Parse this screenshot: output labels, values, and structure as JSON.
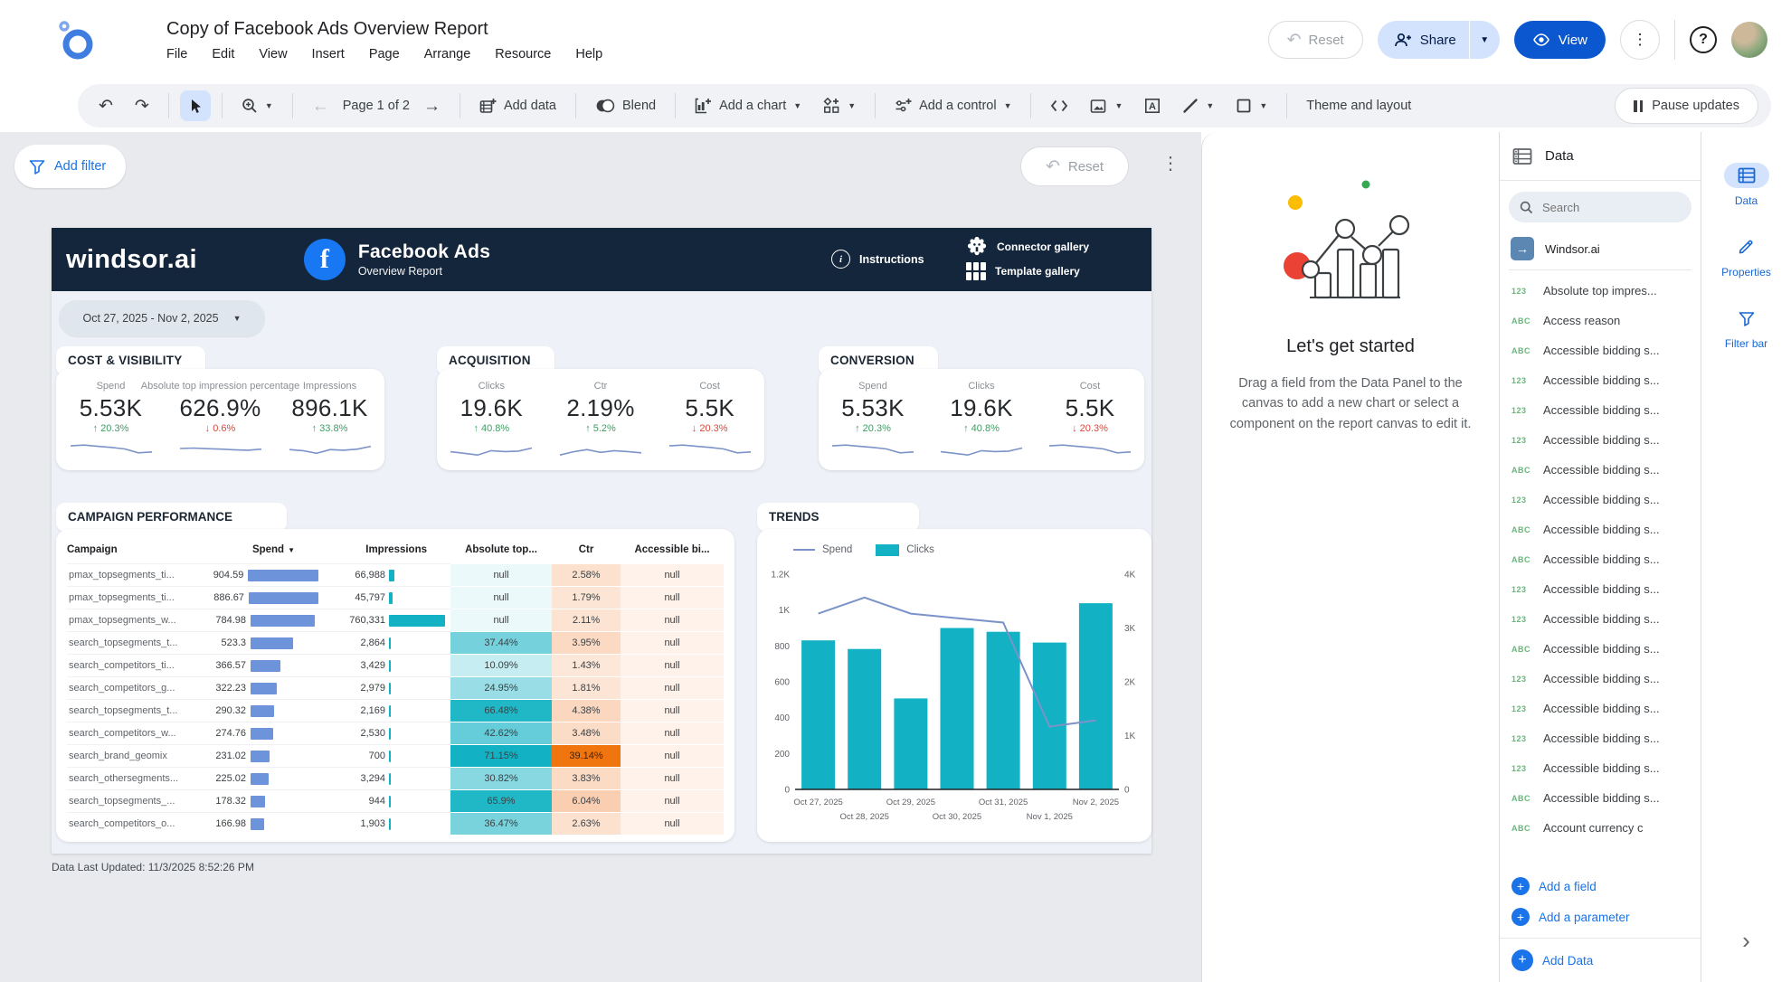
{
  "colors": {
    "navy": "#14263c",
    "fb_blue": "#1877f2",
    "teal": "#12b2c4",
    "bar_blue": "#6d94da",
    "line_blue": "#7b93c8",
    "green": "#3d9e63",
    "red": "#d9493c",
    "link": "#1a73e8",
    "view_blue": "#0b57d0"
  },
  "header": {
    "title": "Copy of Facebook Ads Overview Report",
    "menus": [
      "File",
      "Edit",
      "View",
      "Insert",
      "Page",
      "Arrange",
      "Resource",
      "Help"
    ],
    "reset": "Reset",
    "share": "Share",
    "view": "View"
  },
  "toolbar": {
    "page": "Page 1 of 2",
    "add_data": "Add data",
    "blend": "Blend",
    "add_chart": "Add a chart",
    "add_control": "Add a control",
    "theme": "Theme and layout",
    "pause": "Pause updates"
  },
  "canvas": {
    "add_filter": "Add filter",
    "reset": "Reset",
    "last_updated": "Data Last Updated: 11/3/2025 8:52:26 PM"
  },
  "banner": {
    "brand": "windsor.ai",
    "fb_letter": "f",
    "title": "Facebook Ads",
    "subtitle": "Overview Report",
    "instructions": "Instructions",
    "connector": "Connector gallery",
    "template": "Template gallery"
  },
  "date_range": "Oct 27, 2025 - Nov 2, 2025",
  "groups": [
    {
      "title": "COST & VISIBILITY",
      "metrics": [
        {
          "label": "Spend",
          "value": "5.53K",
          "delta": "20.3%",
          "tone": "good",
          "spark": [
            62,
            66,
            60,
            55,
            48,
            30,
            34
          ]
        },
        {
          "label": "Absolute top impression percentage",
          "value": "626.9%",
          "delta": "0.6%",
          "tone": "bad",
          "spark": [
            50,
            52,
            49,
            47,
            44,
            42,
            47
          ]
        },
        {
          "label": "Impressions",
          "value": "896.1K",
          "delta": "33.8%",
          "tone": "good",
          "spark": [
            45,
            40,
            28,
            45,
            42,
            47,
            60
          ]
        }
      ]
    },
    {
      "title": "ACQUISITION",
      "metrics": [
        {
          "label": "Clicks",
          "value": "19.6K",
          "delta": "40.8%",
          "tone": "good",
          "spark": [
            35,
            28,
            20,
            40,
            36,
            38,
            52
          ]
        },
        {
          "label": "Ctr",
          "value": "2.19%",
          "delta": "5.2%",
          "tone": "good",
          "spark": [
            20,
            35,
            45,
            32,
            40,
            36,
            30
          ]
        },
        {
          "label": "Cost",
          "value": "5.5K",
          "delta": "20.3%",
          "tone": "bad",
          "spark": [
            62,
            66,
            60,
            55,
            48,
            30,
            34
          ]
        }
      ]
    },
    {
      "title": "CONVERSION",
      "metrics": [
        {
          "label": "Spend",
          "value": "5.53K",
          "delta": "20.3%",
          "tone": "good",
          "spark": [
            62,
            66,
            60,
            55,
            48,
            30,
            34
          ]
        },
        {
          "label": "Clicks",
          "value": "19.6K",
          "delta": "40.8%",
          "tone": "good",
          "spark": [
            35,
            28,
            20,
            40,
            36,
            38,
            52
          ]
        },
        {
          "label": "Cost",
          "value": "5.5K",
          "delta": "20.3%",
          "tone": "bad",
          "spark": [
            62,
            66,
            60,
            55,
            48,
            30,
            34
          ]
        }
      ]
    }
  ],
  "table": {
    "title": "CAMPAIGN PERFORMANCE",
    "columns": [
      "Campaign",
      "Spend",
      "Impressions",
      "Absolute top...",
      "Ctr",
      "Accessible bi..."
    ],
    "rows": [
      {
        "campaign": "pmax_topsegments_ti...",
        "spend": "904.59",
        "spend_val": 904.59,
        "impressions": "66,988",
        "impr_val": 66988,
        "abs_top": "null",
        "abs_val": null,
        "ctr": "2.58%",
        "ctr_val": 2.58,
        "accessible": "null"
      },
      {
        "campaign": "pmax_topsegments_ti...",
        "spend": "886.67",
        "spend_val": 886.67,
        "impressions": "45,797",
        "impr_val": 45797,
        "abs_top": "null",
        "abs_val": null,
        "ctr": "1.79%",
        "ctr_val": 1.79,
        "accessible": "null"
      },
      {
        "campaign": "pmax_topsegments_w...",
        "spend": "784.98",
        "spend_val": 784.98,
        "impressions": "760,331",
        "impr_val": 760331,
        "abs_top": "null",
        "abs_val": null,
        "ctr": "2.11%",
        "ctr_val": 2.11,
        "accessible": "null"
      },
      {
        "campaign": "search_topsegments_t...",
        "spend": "523.3",
        "spend_val": 523.3,
        "impressions": "2,864",
        "impr_val": 2864,
        "abs_top": "37.44%",
        "abs_val": 37.44,
        "ctr": "3.95%",
        "ctr_val": 3.95,
        "accessible": "null"
      },
      {
        "campaign": "search_competitors_ti...",
        "spend": "366.57",
        "spend_val": 366.57,
        "impressions": "3,429",
        "impr_val": 3429,
        "abs_top": "10.09%",
        "abs_val": 10.09,
        "ctr": "1.43%",
        "ctr_val": 1.43,
        "accessible": "null"
      },
      {
        "campaign": "search_competitors_g...",
        "spend": "322.23",
        "spend_val": 322.23,
        "impressions": "2,979",
        "impr_val": 2979,
        "abs_top": "24.95%",
        "abs_val": 24.95,
        "ctr": "1.81%",
        "ctr_val": 1.81,
        "accessible": "null"
      },
      {
        "campaign": "search_topsegments_t...",
        "spend": "290.32",
        "spend_val": 290.32,
        "impressions": "2,169",
        "impr_val": 2169,
        "abs_top": "66.48%",
        "abs_val": 66.48,
        "ctr": "4.38%",
        "ctr_val": 4.38,
        "accessible": "null"
      },
      {
        "campaign": "search_competitors_w...",
        "spend": "274.76",
        "spend_val": 274.76,
        "impressions": "2,530",
        "impr_val": 2530,
        "abs_top": "42.62%",
        "abs_val": 42.62,
        "ctr": "3.48%",
        "ctr_val": 3.48,
        "accessible": "null"
      },
      {
        "campaign": "search_brand_geomix",
        "spend": "231.02",
        "spend_val": 231.02,
        "impressions": "700",
        "impr_val": 700,
        "abs_top": "71.15%",
        "abs_val": 71.15,
        "ctr": "39.14%",
        "ctr_val": 39.14,
        "accessible": "null"
      },
      {
        "campaign": "search_othersegments...",
        "spend": "225.02",
        "spend_val": 225.02,
        "impressions": "3,294",
        "impr_val": 3294,
        "abs_top": "30.82%",
        "abs_val": 30.82,
        "ctr": "3.83%",
        "ctr_val": 3.83,
        "accessible": "null"
      },
      {
        "campaign": "search_topsegments_...",
        "spend": "178.32",
        "spend_val": 178.32,
        "impressions": "944",
        "impr_val": 944,
        "abs_top": "65.9%",
        "abs_val": 65.9,
        "ctr": "6.04%",
        "ctr_val": 6.04,
        "accessible": "null"
      },
      {
        "campaign": "search_competitors_o...",
        "spend": "166.98",
        "spend_val": 166.98,
        "impressions": "1,903",
        "impr_val": 1903,
        "abs_top": "36.47%",
        "abs_val": 36.47,
        "ctr": "2.63%",
        "ctr_val": 2.63,
        "accessible": "null"
      }
    ]
  },
  "chart_data": {
    "type": "bar",
    "title": "TRENDS",
    "categories": [
      "Oct 27, 2025",
      "Oct 28, 2025",
      "Oct 29, 2025",
      "Oct 30, 2025",
      "Oct 31, 2025",
      "Nov 1, 2025",
      "Nov 2, 2025"
    ],
    "series": [
      {
        "name": "Spend",
        "type": "line",
        "axis": "left",
        "values": [
          980,
          1070,
          980,
          955,
          930,
          350,
          385
        ]
      },
      {
        "name": "Clicks",
        "type": "bar",
        "axis": "right",
        "values": [
          2770,
          2610,
          1690,
          3000,
          2930,
          2730,
          3460
        ]
      }
    ],
    "left_axis": {
      "max": 1200,
      "ticks": [
        1200,
        1000,
        800,
        600,
        400,
        200,
        0
      ],
      "tick_labels": [
        "1.2K",
        "1K",
        "800",
        "600",
        "400",
        "200",
        "0"
      ]
    },
    "right_axis": {
      "max": 4000,
      "ticks": [
        4000,
        3000,
        2000,
        1000,
        0
      ],
      "tick_labels": [
        "4K",
        "3K",
        "2K",
        "1K",
        "0"
      ]
    },
    "legend_position": "top"
  },
  "started": {
    "title": "Let's get started",
    "body": "Drag a field from the Data Panel to the canvas to add a new chart or select a component on the report canvas to edit it."
  },
  "data_panel": {
    "title": "Data",
    "search_placeholder": "Search",
    "source": "Windsor.ai",
    "fields": [
      {
        "type": "123",
        "label": "Absolute top impres..."
      },
      {
        "type": "ABC",
        "label": "Access reason"
      },
      {
        "type": "ABC",
        "label": "Accessible bidding s..."
      },
      {
        "type": "123",
        "label": "Accessible bidding s..."
      },
      {
        "type": "123",
        "label": "Accessible bidding s..."
      },
      {
        "type": "123",
        "label": "Accessible bidding s..."
      },
      {
        "type": "ABC",
        "label": "Accessible bidding s..."
      },
      {
        "type": "123",
        "label": "Accessible bidding s..."
      },
      {
        "type": "ABC",
        "label": "Accessible bidding s..."
      },
      {
        "type": "ABC",
        "label": "Accessible bidding s..."
      },
      {
        "type": "123",
        "label": "Accessible bidding s..."
      },
      {
        "type": "123",
        "label": "Accessible bidding s..."
      },
      {
        "type": "ABC",
        "label": "Accessible bidding s..."
      },
      {
        "type": "123",
        "label": "Accessible bidding s..."
      },
      {
        "type": "123",
        "label": "Accessible bidding s..."
      },
      {
        "type": "123",
        "label": "Accessible bidding s..."
      },
      {
        "type": "123",
        "label": "Accessible bidding s..."
      },
      {
        "type": "ABC",
        "label": "Accessible bidding s..."
      },
      {
        "type": "ABC",
        "label": "Account currency c"
      }
    ],
    "add_field": "Add a field",
    "add_parameter": "Add a parameter",
    "add_data": "Add Data"
  },
  "rail": {
    "items": [
      {
        "label": "Data",
        "icon": "data-grid-icon",
        "active": true
      },
      {
        "label": "Properties",
        "icon": "pencil-icon",
        "active": false
      },
      {
        "label": "Filter bar",
        "icon": "funnel-icon",
        "active": false
      }
    ]
  }
}
